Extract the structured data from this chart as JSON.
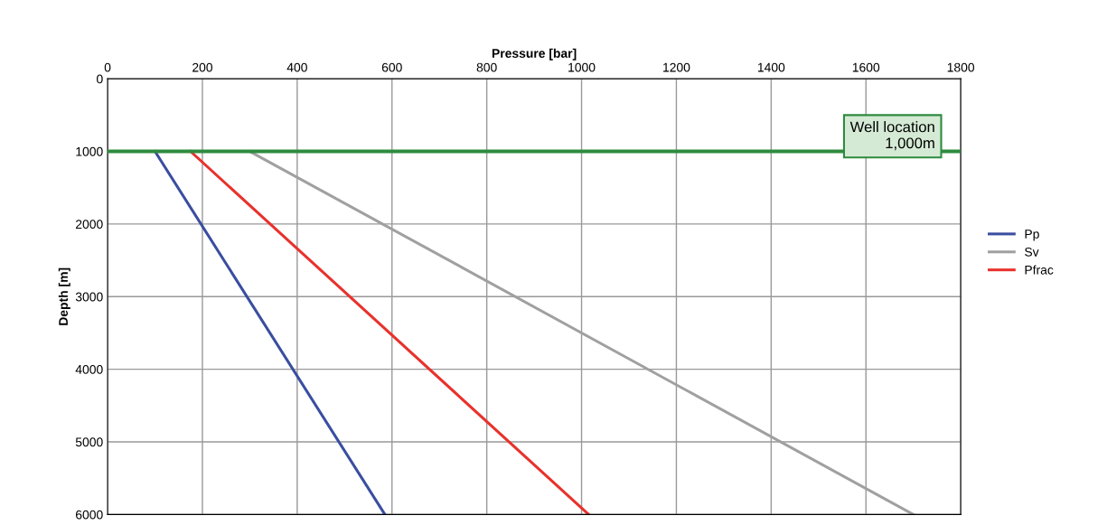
{
  "chart_data": {
    "type": "line",
    "xlabel": "Pressure [bar]",
    "ylabel": "Depth [m]",
    "xlim": [
      0,
      1800
    ],
    "xticks": [
      0,
      200,
      400,
      600,
      800,
      1000,
      1200,
      1400,
      1600,
      1800
    ],
    "ylim": [
      6000,
      0
    ],
    "yticks": [
      0,
      1000,
      2000,
      3000,
      4000,
      5000,
      6000
    ],
    "grid": true,
    "legend": "right",
    "marker": "none",
    "line_style": "solid",
    "series": [
      {
        "name": "Pp",
        "color": "#3a4ea0",
        "x": [
          100,
          585
        ],
        "values": [
          1000,
          6000
        ]
      },
      {
        "name": "Sv",
        "color": "#a0a0a0",
        "x": [
          300,
          1700
        ],
        "values": [
          1000,
          6000
        ]
      },
      {
        "name": "Pfrac",
        "color": "#e8322c",
        "x": [
          175,
          1015
        ],
        "values": [
          1000,
          6000
        ]
      }
    ],
    "ref_lines": [
      {
        "axis": "y",
        "value": 1000,
        "label": "Well location\n1,000m",
        "color": "#2e8b3e"
      }
    ]
  }
}
